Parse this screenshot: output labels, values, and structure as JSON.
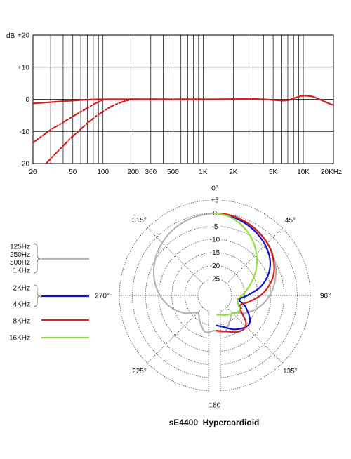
{
  "chart_data": [
    {
      "type": "line",
      "xscale": "log",
      "xlim": [
        20,
        20000
      ],
      "ylim": [
        -20,
        20
      ],
      "yunit": "dB",
      "ytick_labels": [
        {
          "value": 20,
          "label": "+20"
        },
        {
          "value": 10,
          "label": "+10"
        },
        {
          "value": 0,
          "label": "0"
        },
        {
          "value": -10,
          "label": "-10"
        },
        {
          "value": -20,
          "label": "-20"
        }
      ],
      "xtick_labels": [
        {
          "value": 20,
          "label": "20"
        },
        {
          "value": 50,
          "label": "50"
        },
        {
          "value": 100,
          "label": "100"
        },
        {
          "value": 200,
          "label": "200"
        },
        {
          "value": 300,
          "label": "300"
        },
        {
          "value": 500,
          "label": "500"
        },
        {
          "value": 1000,
          "label": "1K"
        },
        {
          "value": 2000,
          "label": "2K"
        },
        {
          "value": 5000,
          "label": "5K"
        },
        {
          "value": 10000,
          "label": "10K"
        },
        {
          "value": 20000,
          "label": "20KHz"
        }
      ],
      "grid": true,
      "series": [
        {
          "style": "solid",
          "color": "#d42020",
          "points": [
            [
              20,
              -1.3
            ],
            [
              30,
              -0.9
            ],
            [
              50,
              -0.4
            ],
            [
              70,
              -0.1
            ],
            [
              100,
              0
            ],
            [
              300,
              0
            ],
            [
              1000,
              0
            ],
            [
              3000,
              0.1
            ],
            [
              4000,
              0
            ],
            [
              5000,
              -0.2
            ],
            [
              6000,
              -0.4
            ],
            [
              7000,
              -0.3
            ],
            [
              8000,
              0.3
            ],
            [
              9000,
              0.8
            ],
            [
              10000,
              1.1
            ],
            [
              11000,
              1.1
            ],
            [
              12500,
              0.8
            ],
            [
              14000,
              0.2
            ],
            [
              16000,
              -0.6
            ],
            [
              18000,
              -1.3
            ],
            [
              20000,
              -1.8
            ]
          ]
        },
        {
          "style": "dashed",
          "color": "#d42020",
          "points": [
            [
              20,
              -13.5
            ],
            [
              25,
              -11.3
            ],
            [
              30,
              -9.5
            ],
            [
              40,
              -7.2
            ],
            [
              50,
              -5.3
            ],
            [
              60,
              -3.9
            ],
            [
              70,
              -2.7
            ],
            [
              80,
              -1.6
            ],
            [
              90,
              -0.8
            ],
            [
              100,
              -0.2
            ],
            [
              110,
              0
            ],
            [
              1000,
              0
            ]
          ]
        },
        {
          "style": "dashed",
          "color": "#d42020",
          "points": [
            [
              27,
              -20
            ],
            [
              30,
              -18.5
            ],
            [
              40,
              -14.5
            ],
            [
              50,
              -11.5
            ],
            [
              60,
              -9.3
            ],
            [
              70,
              -7.4
            ],
            [
              80,
              -5.9
            ],
            [
              100,
              -3.8
            ],
            [
              120,
              -2.3
            ],
            [
              150,
              -1
            ],
            [
              180,
              -0.3
            ],
            [
              200,
              0
            ],
            [
              1000,
              0
            ]
          ]
        }
      ]
    },
    {
      "type": "polar",
      "title": "sE4400  Hypercardioid",
      "angle_labels": [
        {
          "deg": 0,
          "label": "0°"
        },
        {
          "deg": 45,
          "label": "45°"
        },
        {
          "deg": 90,
          "label": "90°"
        },
        {
          "deg": 135,
          "label": "135°"
        },
        {
          "deg": 180,
          "label": "180"
        },
        {
          "deg": 225,
          "label": "225°"
        },
        {
          "deg": 270,
          "label": "270°"
        },
        {
          "deg": 315,
          "label": "315°"
        }
      ],
      "rlim": [
        -25,
        5
      ],
      "ring_labels": [
        "+5",
        "0",
        "-5",
        "-10",
        "-15",
        "-20",
        "-25"
      ],
      "legend": [
        {
          "labels": [
            "125Hz",
            "250Hz",
            "500Hz",
            "1KHz"
          ],
          "color": "#b4b4b4"
        },
        {
          "labels": [
            "2KHz",
            "4KHz"
          ],
          "color": "#1010d0"
        },
        {
          "labels": [
            "8KHz"
          ],
          "color": "#d42020"
        },
        {
          "labels": [
            "16KHz"
          ],
          "color": "#90e040"
        }
      ],
      "series": [
        {
          "color": "#b4b4b4",
          "points": [
            [
              0,
              0
            ],
            [
              15,
              -0.5
            ],
            [
              30,
              -1.5
            ],
            [
              45,
              -3
            ],
            [
              60,
              -5
            ],
            [
              75,
              -7.5
            ],
            [
              90,
              -10.5
            ],
            [
              105,
              -14
            ],
            [
              120,
              -18
            ],
            [
              135,
              -22
            ],
            [
              150,
              -20
            ],
            [
              165,
              -17
            ],
            [
              180,
              -18
            ],
            [
              195,
              -17
            ],
            [
              210,
              -20
            ],
            [
              225,
              -22
            ],
            [
              240,
              -18
            ],
            [
              255,
              -14
            ],
            [
              270,
              -10.5
            ],
            [
              285,
              -7.5
            ],
            [
              300,
              -5
            ],
            [
              315,
              -3
            ],
            [
              330,
              -1.5
            ],
            [
              345,
              -0.5
            ],
            [
              360,
              0
            ]
          ]
        },
        {
          "color": "#1010d0",
          "points": [
            [
              0,
              0
            ],
            [
              10,
              -0.5
            ],
            [
              20,
              -1.3
            ],
            [
              30,
              -2.3
            ],
            [
              40,
              -3.5
            ],
            [
              50,
              -5
            ],
            [
              60,
              -7
            ],
            [
              70,
              -10
            ],
            [
              80,
              -14
            ],
            [
              90,
              -19
            ],
            [
              100,
              -22
            ],
            [
              110,
              -19
            ],
            [
              125,
              -15
            ],
            [
              135,
              -14.5
            ],
            [
              150,
              -16.5
            ],
            [
              165,
              -19
            ],
            [
              178,
              -20
            ]
          ]
        },
        {
          "color": "#d42020",
          "points": [
            [
              0,
              0
            ],
            [
              10,
              -0.2
            ],
            [
              20,
              -0.8
            ],
            [
              30,
              -1.6
            ],
            [
              40,
              -2.6
            ],
            [
              50,
              -3.8
            ],
            [
              60,
              -5.5
            ],
            [
              70,
              -7.5
            ],
            [
              80,
              -10.5
            ],
            [
              90,
              -14
            ],
            [
              100,
              -18
            ],
            [
              110,
              -21
            ],
            [
              120,
              -20
            ],
            [
              130,
              -16
            ],
            [
              138,
              -14.5
            ],
            [
              148,
              -15
            ],
            [
              158,
              -16.5
            ],
            [
              168,
              -17.5
            ],
            [
              178,
              -18
            ]
          ]
        },
        {
          "color": "#90e040",
          "points": [
            [
              0,
              0
            ],
            [
              10,
              -0.8
            ],
            [
              20,
              -2.5
            ],
            [
              30,
              -4.8
            ],
            [
              40,
              -7.5
            ],
            [
              50,
              -10.5
            ],
            [
              60,
              -13.5
            ],
            [
              70,
              -16.5
            ],
            [
              80,
              -19
            ],
            [
              90,
              -21
            ],
            [
              100,
              -22.5
            ],
            [
              110,
              -22
            ],
            [
              120,
              -20.5
            ],
            [
              130,
              -21
            ],
            [
              145,
              -22.5
            ],
            [
              160,
              -23.5
            ],
            [
              175,
              -24
            ]
          ]
        }
      ]
    }
  ]
}
